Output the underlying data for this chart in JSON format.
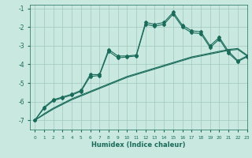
{
  "xlabel": "Humidex (Indice chaleur)",
  "ylabel": "",
  "xlim": [
    -0.5,
    23
  ],
  "ylim": [
    -7.5,
    -0.8
  ],
  "yticks": [
    -7,
    -6,
    -5,
    -4,
    -3,
    -2,
    -1
  ],
  "xticks": [
    0,
    1,
    2,
    3,
    4,
    5,
    6,
    7,
    8,
    9,
    10,
    11,
    12,
    13,
    14,
    15,
    16,
    17,
    18,
    19,
    20,
    21,
    22,
    23
  ],
  "bg_color": "#c8e8e0",
  "line_color": "#1a6b5a",
  "grid_color": "#a0c8c0",
  "line1_x": [
    0,
    1,
    2,
    3,
    4,
    5,
    6,
    7,
    8,
    9,
    10,
    11,
    12,
    13,
    14,
    15,
    16,
    17,
    18,
    19,
    20,
    21,
    22,
    23
  ],
  "line1_y": [
    -7.0,
    -6.65,
    -6.35,
    -6.1,
    -5.85,
    -5.65,
    -5.45,
    -5.25,
    -5.05,
    -4.85,
    -4.65,
    -4.5,
    -4.35,
    -4.2,
    -4.05,
    -3.9,
    -3.75,
    -3.6,
    -3.5,
    -3.4,
    -3.3,
    -3.2,
    -3.15,
    -3.5
  ],
  "line2_x": [
    0,
    1,
    2,
    3,
    4,
    5,
    6,
    7,
    8,
    9,
    10,
    11,
    12,
    13,
    14,
    15,
    16,
    17,
    18,
    19,
    20,
    21,
    22,
    23
  ],
  "line2_y": [
    -7.0,
    -6.7,
    -6.4,
    -6.15,
    -5.9,
    -5.7,
    -5.5,
    -5.3,
    -5.1,
    -4.9,
    -4.7,
    -4.55,
    -4.4,
    -4.25,
    -4.1,
    -3.95,
    -3.8,
    -3.65,
    -3.55,
    -3.45,
    -3.35,
    -3.25,
    -3.2,
    -3.55
  ],
  "line3_x": [
    0,
    1,
    2,
    3,
    4,
    5,
    6,
    7,
    8,
    9,
    10,
    11,
    12,
    13,
    14,
    15,
    16,
    17,
    18,
    19,
    20,
    21,
    22,
    23
  ],
  "line3_y": [
    -7.0,
    -6.3,
    -5.9,
    -5.75,
    -5.6,
    -5.4,
    -4.55,
    -4.55,
    -3.2,
    -3.55,
    -3.55,
    -3.5,
    -1.75,
    -1.85,
    -1.75,
    -1.2,
    -1.9,
    -2.2,
    -2.25,
    -3.0,
    -2.55,
    -3.3,
    -3.8,
    -3.55
  ],
  "line4_x": [
    0,
    1,
    2,
    3,
    4,
    5,
    6,
    7,
    8,
    9,
    10,
    11,
    12,
    13,
    14,
    15,
    16,
    17,
    18,
    19,
    20,
    21,
    22,
    23
  ],
  "line4_y": [
    -7.0,
    -6.35,
    -5.95,
    -5.8,
    -5.65,
    -5.45,
    -4.65,
    -4.6,
    -3.3,
    -3.65,
    -3.6,
    -3.55,
    -1.85,
    -1.95,
    -1.85,
    -1.3,
    -2.0,
    -2.3,
    -2.35,
    -3.1,
    -2.65,
    -3.4,
    -3.85,
    -3.6
  ]
}
